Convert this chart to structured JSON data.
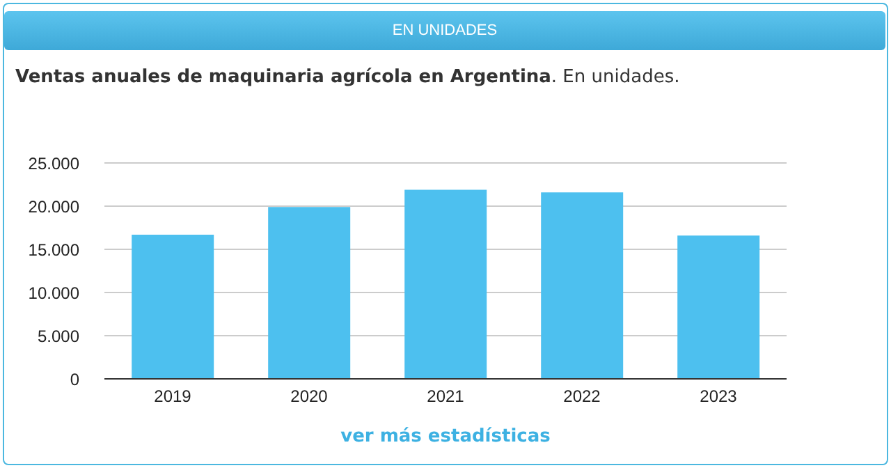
{
  "chart_data": {
    "type": "bar",
    "title": "EN UNIDADES",
    "subtitle": "Ventas anuales de maquinaria agrícola en Argentina. En unidades.",
    "categories": [
      "2019",
      "2020",
      "2021",
      "2022",
      "2023"
    ],
    "values": [
      16700,
      19900,
      21900,
      21600,
      16600
    ],
    "color": "#4dc0ef",
    "ylim": [
      0,
      25000
    ],
    "yticks": [
      0,
      {
        "value": 5000,
        "label": "5.000"
      },
      {
        "value": 10000,
        "label": "10.000"
      },
      {
        "value": 15000,
        "label": "15.000"
      },
      {
        "value": 20000,
        "label": "20.000"
      },
      {
        "value": 25000,
        "label": "25.000"
      }
    ],
    "grid": "y",
    "legend": false,
    "annotations": [
      "ver más estadísticas"
    ]
  }
}
